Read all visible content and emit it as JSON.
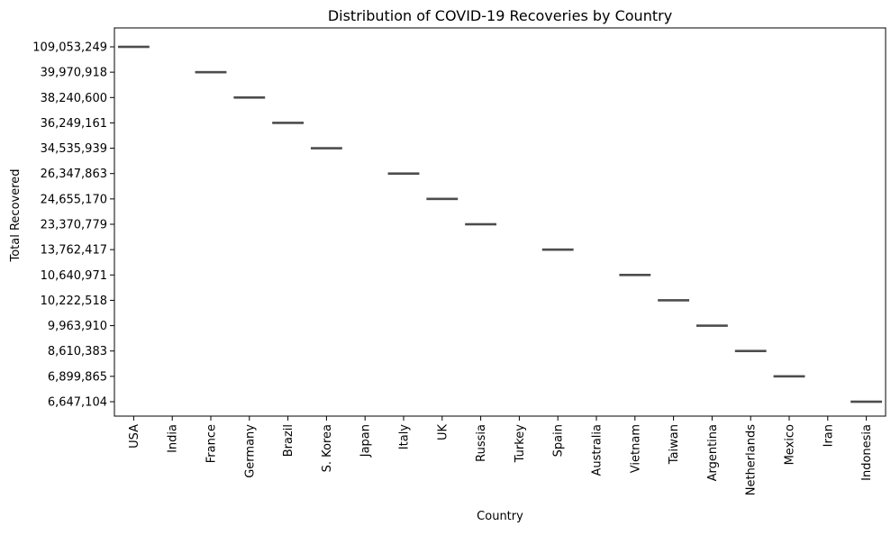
{
  "chart_data": {
    "type": "box",
    "title": "Distribution of COVID-19 Recoveries by Country",
    "xlabel": "Country",
    "ylabel": "Total Recovered",
    "grid": false,
    "categories": [
      "USA",
      "India",
      "France",
      "Germany",
      "Brazil",
      "S. Korea",
      "Japan",
      "Italy",
      "UK",
      "Russia",
      "Turkey",
      "Spain",
      "Australia",
      "Vietnam",
      "Taiwan",
      "Argentina",
      "Netherlands",
      "Mexico",
      "Iran",
      "Indonesia"
    ],
    "y_categorical": true,
    "y_tick_labels": [
      "109,053,249",
      "39,970,918",
      "38,240,600",
      "36,249,161",
      "34,535,939",
      "26,347,863",
      "24,655,170",
      "23,370,779",
      "13,762,417",
      "10,640,971",
      "10,222,518",
      "9,963,910",
      "8,610,383",
      "6,899,865",
      "6,647,104"
    ],
    "points": [
      {
        "x": "USA",
        "y": "109,053,249"
      },
      {
        "x": "France",
        "y": "39,970,918"
      },
      {
        "x": "Germany",
        "y": "38,240,600"
      },
      {
        "x": "Brazil",
        "y": "36,249,161"
      },
      {
        "x": "S. Korea",
        "y": "34,535,939"
      },
      {
        "x": "Italy",
        "y": "26,347,863"
      },
      {
        "x": "UK",
        "y": "24,655,170"
      },
      {
        "x": "Russia",
        "y": "23,370,779"
      },
      {
        "x": "Spain",
        "y": "13,762,417"
      },
      {
        "x": "Vietnam",
        "y": "10,640,971"
      },
      {
        "x": "Taiwan",
        "y": "10,222,518"
      },
      {
        "x": "Argentina",
        "y": "9,963,910"
      },
      {
        "x": "Netherlands",
        "y": "8,610,383"
      },
      {
        "x": "Mexico",
        "y": "6,899,865"
      },
      {
        "x": "Indonesia",
        "y": "6,647,104"
      }
    ],
    "box_color": "#4c4c4c"
  }
}
